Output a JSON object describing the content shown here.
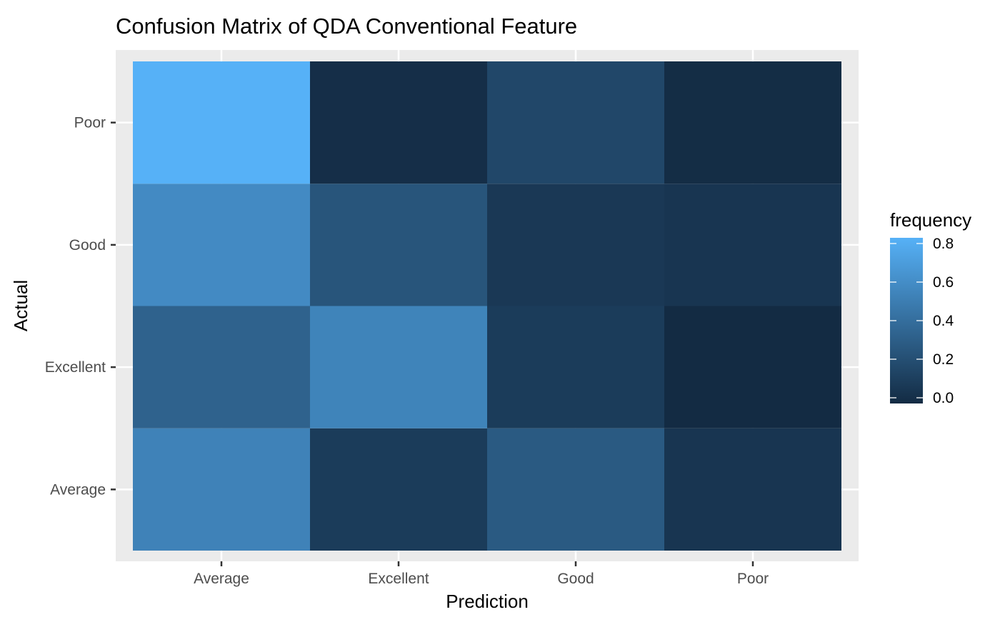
{
  "chart_data": {
    "type": "heatmap",
    "title": "Confusion Matrix of QDA Conventional Feature",
    "xlabel": "Prediction",
    "ylabel": "Actual",
    "x_categories": [
      "Average",
      "Excellent",
      "Good",
      "Poor"
    ],
    "y_categories": [
      "Average",
      "Excellent",
      "Good",
      "Poor"
    ],
    "values": [
      [
        0.52,
        0.1,
        0.28,
        0.06
      ],
      [
        0.33,
        0.53,
        0.1,
        0.0
      ],
      [
        0.57,
        0.25,
        0.08,
        0.06
      ],
      [
        0.8,
        0.02,
        0.17,
        0.01
      ]
    ],
    "values_layout": "rows follow y_categories (Actual), columns follow x_categories (Prediction)",
    "legend": {
      "title": "frequency",
      "placement": "right",
      "range": [
        0.0,
        0.8
      ],
      "ticks": [
        0.0,
        0.2,
        0.4,
        0.6,
        0.8
      ],
      "tick_labels": [
        "0.0",
        "0.2",
        "0.4",
        "0.6",
        "0.8"
      ],
      "low_color": "#132B43",
      "high_color": "#56B1F7"
    },
    "panel_background": "#EBEBEB",
    "gridline_color": "#FFFFFF",
    "grid": true
  }
}
